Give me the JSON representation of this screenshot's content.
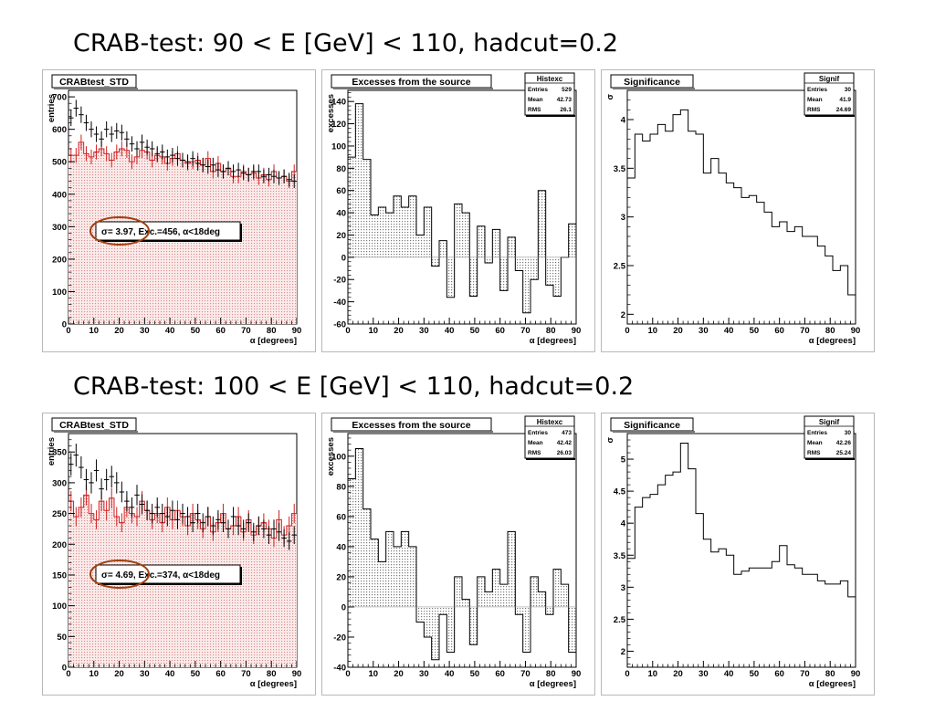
{
  "titles": [
    "CRAB-test: 90 < E [GeV] < 110, hadcut=0.2",
    "CRAB-test: 100 < E [GeV] < 110, hadcut=0.2"
  ],
  "colors": {
    "on_fill": "#f7dede",
    "on_line": "#d02020",
    "circle": "#a04010",
    "panel_bg": "#ffffff"
  },
  "chart_data": [
    {
      "type": "bar",
      "title": "CRABtest_STD",
      "xlabel": "α [degrees]",
      "ylabel": "entries",
      "xlim": [
        0,
        90
      ],
      "ylim": [
        0,
        720
      ],
      "xticks": [
        0,
        10,
        20,
        30,
        40,
        50,
        60,
        70,
        80,
        90
      ],
      "yticks": [
        0,
        100,
        200,
        300,
        400,
        500,
        600,
        700
      ],
      "bin_width": 2,
      "on_values": [
        520,
        520,
        560,
        525,
        515,
        530,
        540,
        525,
        505,
        530,
        540,
        535,
        500,
        515,
        535,
        530,
        505,
        520,
        515,
        495,
        510,
        525,
        505,
        495,
        500,
        505,
        490,
        510,
        470,
        495,
        470,
        480,
        455,
        455,
        470,
        460,
        465,
        450,
        460,
        445,
        470,
        450,
        455,
        440,
        470
      ],
      "off_points": [
        [
          1,
          635
        ],
        [
          3,
          665
        ],
        [
          5,
          645
        ],
        [
          7,
          620
        ],
        [
          9,
          600
        ],
        [
          11,
          585
        ],
        [
          13,
          570
        ],
        [
          15,
          600
        ],
        [
          17,
          585
        ],
        [
          19,
          595
        ],
        [
          21,
          590
        ],
        [
          23,
          570
        ],
        [
          25,
          555
        ],
        [
          27,
          540
        ],
        [
          29,
          560
        ],
        [
          31,
          545
        ],
        [
          33,
          540
        ],
        [
          35,
          525
        ],
        [
          37,
          530
        ],
        [
          39,
          515
        ],
        [
          41,
          520
        ],
        [
          43,
          510
        ],
        [
          45,
          505
        ],
        [
          47,
          500
        ],
        [
          49,
          510
        ],
        [
          51,
          495
        ],
        [
          53,
          490
        ],
        [
          55,
          485
        ],
        [
          57,
          490
        ],
        [
          59,
          475
        ],
        [
          61,
          470
        ],
        [
          63,
          480
        ],
        [
          65,
          470
        ],
        [
          67,
          475
        ],
        [
          69,
          465
        ],
        [
          71,
          460
        ],
        [
          73,
          470
        ],
        [
          75,
          470
        ],
        [
          77,
          455
        ],
        [
          79,
          460
        ],
        [
          81,
          455
        ],
        [
          83,
          450
        ],
        [
          85,
          455
        ],
        [
          87,
          445
        ],
        [
          89,
          440
        ]
      ],
      "annotation": "σ=     3.97, Exc.=456, α<18deg"
    },
    {
      "type": "bar",
      "title": "Excesses from the source",
      "xlabel": "α [degrees]",
      "ylabel": "excesses",
      "xlim": [
        0,
        90
      ],
      "ylim": [
        -60,
        150
      ],
      "xticks": [
        0,
        10,
        20,
        30,
        40,
        50,
        60,
        70,
        80,
        90
      ],
      "yticks": [
        -60,
        -40,
        -20,
        0,
        20,
        40,
        60,
        80,
        100,
        120,
        140
      ],
      "bin_width": 3,
      "values": [
        90,
        138,
        88,
        38,
        45,
        40,
        55,
        45,
        55,
        20,
        45,
        -8,
        15,
        -36,
        48,
        40,
        -35,
        28,
        -5,
        25,
        -30,
        18,
        -12,
        -50,
        -20,
        60,
        -25,
        -35,
        0,
        30
      ],
      "stats": {
        "name": "Histexc",
        "entries": "529",
        "mean": "42.73",
        "rms": "26.1"
      }
    },
    {
      "type": "line",
      "title": "Significance",
      "xlabel": "α [degrees]",
      "ylabel": "σ",
      "xlim": [
        0,
        90
      ],
      "ylim": [
        1.9,
        4.3
      ],
      "xticks": [
        0,
        10,
        20,
        30,
        40,
        50,
        60,
        70,
        80,
        90
      ],
      "yticks": [
        2,
        2.5,
        3,
        3.5,
        4
      ],
      "yticklabels": [
        "2",
        "2.5",
        "3",
        "3.5",
        "4"
      ],
      "bin_width": 3,
      "values": [
        3.4,
        3.85,
        3.78,
        3.85,
        3.95,
        3.88,
        4.05,
        4.1,
        3.88,
        3.85,
        3.45,
        3.6,
        3.45,
        3.35,
        3.3,
        3.2,
        3.22,
        3.15,
        3.05,
        2.9,
        2.95,
        2.85,
        2.9,
        2.8,
        2.8,
        2.7,
        2.6,
        2.45,
        2.5,
        2.2
      ],
      "stats": {
        "name": "Signif",
        "entries": "30",
        "mean": "41.9",
        "rms": "24.69"
      }
    },
    {
      "type": "bar",
      "title": "CRABtest_STD",
      "xlabel": "α [degrees]",
      "ylabel": "entries",
      "xlim": [
        0,
        90
      ],
      "ylim": [
        0,
        380
      ],
      "xticks": [
        0,
        10,
        20,
        30,
        40,
        50,
        60,
        70,
        80,
        90
      ],
      "yticks": [
        0,
        50,
        100,
        150,
        200,
        250,
        300,
        350
      ],
      "bin_width": 2,
      "on_values": [
        270,
        245,
        260,
        280,
        250,
        240,
        270,
        255,
        275,
        245,
        235,
        260,
        250,
        245,
        270,
        255,
        240,
        250,
        235,
        260,
        240,
        255,
        245,
        230,
        250,
        240,
        225,
        245,
        220,
        235,
        250,
        225,
        230,
        245,
        220,
        240,
        215,
        230,
        235,
        225,
        210,
        240,
        215,
        230,
        250
      ],
      "off_points": [
        [
          1,
          330
        ],
        [
          3,
          345
        ],
        [
          5,
          325
        ],
        [
          7,
          305
        ],
        [
          9,
          300
        ],
        [
          11,
          320
        ],
        [
          13,
          290
        ],
        [
          15,
          305
        ],
        [
          17,
          310
        ],
        [
          19,
          300
        ],
        [
          21,
          285
        ],
        [
          23,
          270
        ],
        [
          25,
          260
        ],
        [
          27,
          280
        ],
        [
          29,
          265
        ],
        [
          31,
          255
        ],
        [
          33,
          250
        ],
        [
          35,
          260
        ],
        [
          37,
          250
        ],
        [
          39,
          245
        ],
        [
          41,
          255
        ],
        [
          43,
          240
        ],
        [
          45,
          250
        ],
        [
          47,
          245
        ],
        [
          49,
          235
        ],
        [
          51,
          250
        ],
        [
          53,
          235
        ],
        [
          55,
          245
        ],
        [
          57,
          230
        ],
        [
          59,
          240
        ],
        [
          61,
          235
        ],
        [
          63,
          225
        ],
        [
          65,
          245
        ],
        [
          67,
          230
        ],
        [
          69,
          225
        ],
        [
          71,
          235
        ],
        [
          73,
          220
        ],
        [
          75,
          230
        ],
        [
          77,
          225
        ],
        [
          79,
          215
        ],
        [
          81,
          225
        ],
        [
          83,
          220
        ],
        [
          85,
          210
        ],
        [
          87,
          205
        ],
        [
          89,
          215
        ]
      ],
      "annotation": "σ=     4.69, Exc.=374, α<18deg"
    },
    {
      "type": "bar",
      "title": "Excesses from the source",
      "xlabel": "α [degrees]",
      "ylabel": "excesses",
      "xlim": [
        0,
        90
      ],
      "ylim": [
        -40,
        115
      ],
      "xticks": [
        0,
        10,
        20,
        30,
        40,
        50,
        60,
        70,
        80,
        90
      ],
      "yticks": [
        -40,
        -20,
        0,
        20,
        40,
        60,
        80,
        100
      ],
      "bin_width": 3,
      "values": [
        85,
        105,
        65,
        45,
        30,
        50,
        40,
        50,
        40,
        -10,
        -20,
        -35,
        -5,
        -30,
        20,
        5,
        -25,
        20,
        10,
        25,
        15,
        50,
        -5,
        -30,
        20,
        10,
        -5,
        25,
        15,
        -30
      ],
      "stats": {
        "name": "Histexc",
        "entries": "473",
        "mean": "42.42",
        "rms": "26.03"
      }
    },
    {
      "type": "line",
      "title": "Significance",
      "xlabel": "α [degrees]",
      "ylabel": "σ",
      "xlim": [
        0,
        90
      ],
      "ylim": [
        1.75,
        5.4
      ],
      "xticks": [
        0,
        10,
        20,
        30,
        40,
        50,
        60,
        70,
        80,
        90
      ],
      "yticks": [
        2,
        2.5,
        3,
        3.5,
        4,
        4.5,
        5
      ],
      "yticklabels": [
        "2",
        "2.5",
        "3",
        "3.5",
        "4",
        "4.5",
        "5"
      ],
      "bin_width": 3,
      "values": [
        3.45,
        4.25,
        4.4,
        4.45,
        4.6,
        4.75,
        4.8,
        5.25,
        4.85,
        4.15,
        3.75,
        3.55,
        3.6,
        3.5,
        3.2,
        3.25,
        3.3,
        3.3,
        3.3,
        3.4,
        3.65,
        3.35,
        3.3,
        3.2,
        3.2,
        3.1,
        3.05,
        3.05,
        3.1,
        2.85
      ],
      "stats": {
        "name": "Signif",
        "entries": "30",
        "mean": "42.26",
        "rms": "25.24"
      }
    }
  ]
}
